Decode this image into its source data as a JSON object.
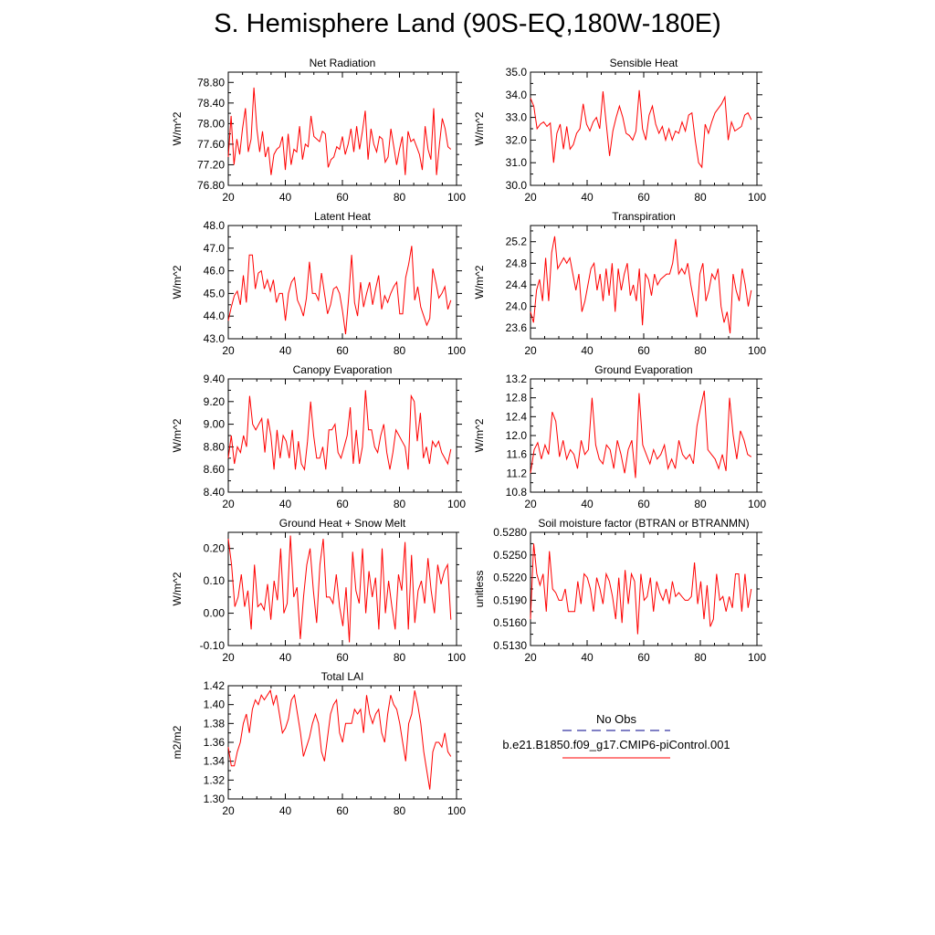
{
  "title": "S. Hemisphere Land (90S-EQ,180W-180E)",
  "colors": {
    "series": "#ff0000",
    "obs": "#00008b",
    "axis": "#000000"
  },
  "legend": {
    "obs_label": "No Obs",
    "model_label": "b.e21.B1850.f09_g17.CMIP6-piControl.001"
  },
  "chart_data": [
    {
      "type": "line",
      "title": "Net Radiation",
      "ylabel": "W/m^2",
      "xlim": [
        20,
        100
      ],
      "ylim": [
        76.8,
        79.0
      ],
      "xticks": [
        20,
        40,
        60,
        80,
        100
      ],
      "xtick_labels": [
        "20",
        "40",
        "60",
        "80",
        "100"
      ],
      "yticks": [
        76.8,
        77.2,
        77.6,
        78.0,
        78.4,
        78.8
      ],
      "ytick_labels": [
        "76.80",
        "77.20",
        "77.60",
        "78.00",
        "78.40",
        "78.80"
      ],
      "x_start": 20,
      "series": [
        {
          "name": "b.e21.B1850.f09_g17.CMIP6-piControl.001",
          "values": [
            77.35,
            78.15,
            77.2,
            77.7,
            77.4,
            77.9,
            78.3,
            77.45,
            77.7,
            78.7,
            77.9,
            77.45,
            77.85,
            77.35,
            77.55,
            77.0,
            77.4,
            77.5,
            77.55,
            77.75,
            77.1,
            77.8,
            77.2,
            77.5,
            77.45,
            77.95,
            77.3,
            77.6,
            77.55,
            78.15,
            77.75,
            77.7,
            77.65,
            77.85,
            77.8,
            77.15,
            77.3,
            77.35,
            77.55,
            77.5,
            77.75,
            77.4,
            77.6,
            77.9,
            77.45,
            77.95,
            77.5,
            77.85,
            78.25,
            77.3,
            77.9,
            77.6,
            77.45,
            77.75,
            77.7,
            77.25,
            77.35,
            77.9,
            77.55,
            77.2,
            77.5,
            77.75,
            77.0,
            77.85,
            77.65,
            77.7,
            77.55,
            77.4,
            77.1,
            77.95,
            77.5,
            77.3,
            78.3,
            77.0,
            77.6,
            78.1,
            77.9,
            77.55,
            77.5
          ]
        }
      ]
    },
    {
      "type": "line",
      "title": "Sensible Heat",
      "ylabel": "W/m^2",
      "xlim": [
        20,
        100
      ],
      "ylim": [
        30.0,
        35.0
      ],
      "xticks": [
        20,
        40,
        60,
        80,
        100
      ],
      "xtick_labels": [
        "20",
        "40",
        "60",
        "80",
        "100"
      ],
      "yticks": [
        30,
        31,
        32,
        33,
        34,
        35
      ],
      "ytick_labels": [
        "30.0",
        "31.0",
        "32.0",
        "33.0",
        "34.0",
        "35.0"
      ],
      "x_start": 20,
      "series": [
        {
          "name": "b.e21.B1850.f09_g17.CMIP6-piControl.001",
          "values": [
            33.85,
            33.5,
            32.5,
            32.7,
            32.8,
            32.6,
            32.75,
            31.0,
            32.3,
            32.7,
            31.6,
            32.6,
            31.6,
            31.8,
            32.3,
            32.5,
            33.6,
            32.7,
            32.4,
            32.8,
            33.0,
            32.5,
            34.15,
            32.7,
            31.3,
            32.4,
            33.0,
            33.5,
            33.0,
            32.3,
            32.2,
            32.0,
            32.4,
            34.2,
            32.5,
            32.0,
            33.1,
            33.5,
            32.7,
            32.3,
            32.6,
            32.0,
            32.5,
            32.0,
            32.4,
            32.3,
            32.8,
            32.4,
            33.1,
            33.2,
            32.0,
            31.0,
            30.8,
            32.7,
            32.3,
            32.8,
            33.2,
            33.4,
            33.6,
            33.9,
            32.0,
            32.8,
            32.4,
            32.5,
            32.6,
            33.1,
            33.2,
            32.9
          ]
        }
      ]
    },
    {
      "type": "line",
      "title": "Latent Heat",
      "ylabel": "W/m^2",
      "xlim": [
        20,
        100
      ],
      "ylim": [
        43.0,
        48.0
      ],
      "xticks": [
        20,
        40,
        60,
        80,
        100
      ],
      "xtick_labels": [
        "20",
        "40",
        "60",
        "80",
        "100"
      ],
      "yticks": [
        43,
        44,
        45,
        46,
        47,
        48
      ],
      "ytick_labels": [
        "43.0",
        "44.0",
        "45.0",
        "46.0",
        "47.0",
        "48.0"
      ],
      "x_start": 20,
      "series": [
        {
          "name": "b.e21.B1850.f09_g17.CMIP6-piControl.001",
          "values": [
            43.8,
            44.4,
            44.9,
            45.1,
            44.5,
            45.8,
            44.6,
            46.7,
            46.7,
            45.2,
            45.9,
            46.0,
            45.2,
            45.6,
            45.1,
            45.6,
            44.6,
            45.0,
            45.0,
            43.8,
            45.0,
            45.5,
            45.7,
            44.7,
            44.4,
            44.0,
            44.8,
            46.4,
            45.0,
            45.0,
            44.7,
            45.9,
            45.0,
            44.1,
            44.5,
            45.2,
            45.3,
            45.0,
            44.2,
            43.2,
            44.8,
            46.7,
            44.6,
            44.0,
            45.5,
            44.4,
            45.0,
            45.5,
            44.5,
            45.2,
            45.8,
            44.3,
            44.9,
            44.6,
            45.0,
            45.3,
            45.5,
            44.1,
            44.1,
            45.7,
            46.3,
            47.1,
            44.7,
            45.3,
            44.4,
            44.0,
            43.6,
            43.9,
            46.1,
            45.5,
            44.8,
            45.0,
            45.3,
            44.3,
            44.7
          ]
        }
      ]
    },
    {
      "type": "line",
      "title": "Transpiration",
      "ylabel": "W/m^2",
      "xlim": [
        20,
        100
      ],
      "ylim": [
        23.4,
        25.5
      ],
      "xticks": [
        20,
        40,
        60,
        80,
        100
      ],
      "xtick_labels": [
        "20",
        "40",
        "60",
        "80",
        "100"
      ],
      "yticks": [
        23.6,
        24.0,
        24.4,
        24.8,
        25.2
      ],
      "ytick_labels": [
        "23.6",
        "24.0",
        "24.4",
        "24.8",
        "25.2"
      ],
      "x_start": 20,
      "series": [
        {
          "name": "b.e21.B1850.f09_g17.CMIP6-piControl.001",
          "values": [
            23.9,
            23.7,
            24.3,
            24.5,
            24.1,
            24.9,
            24.1,
            25.0,
            25.3,
            24.7,
            24.8,
            24.9,
            24.8,
            24.9,
            24.6,
            24.3,
            24.6,
            23.9,
            24.1,
            24.4,
            24.7,
            24.8,
            24.3,
            24.6,
            24.1,
            24.7,
            24.2,
            24.8,
            23.9,
            24.7,
            24.3,
            24.6,
            24.8,
            24.2,
            24.4,
            24.1,
            24.7,
            23.65,
            24.6,
            24.5,
            24.2,
            24.6,
            24.4,
            24.5,
            24.55,
            24.6,
            24.6,
            24.8,
            25.25,
            24.6,
            24.7,
            24.6,
            24.8,
            24.4,
            24.1,
            23.8,
            24.6,
            24.8,
            24.1,
            24.3,
            24.6,
            24.5,
            24.7,
            24.0,
            23.7,
            23.9,
            23.5,
            24.6,
            24.3,
            24.1,
            24.7,
            24.4,
            24.0,
            24.3
          ]
        }
      ]
    },
    {
      "type": "line",
      "title": "Canopy Evaporation",
      "ylabel": "W/m^2",
      "xlim": [
        20,
        100
      ],
      "ylim": [
        8.4,
        9.4
      ],
      "xticks": [
        20,
        40,
        60,
        80,
        100
      ],
      "xtick_labels": [
        "20",
        "40",
        "60",
        "80",
        "100"
      ],
      "yticks": [
        8.4,
        8.6,
        8.8,
        9.0,
        9.2,
        9.4
      ],
      "ytick_labels": [
        "8.40",
        "8.60",
        "8.80",
        "9.00",
        "9.20",
        "9.40"
      ],
      "x_start": 20,
      "series": [
        {
          "name": "b.e21.B1850.f09_g17.CMIP6-piControl.001",
          "values": [
            8.7,
            8.9,
            8.65,
            8.8,
            8.75,
            8.9,
            8.8,
            9.25,
            9.0,
            8.95,
            9.0,
            9.05,
            8.75,
            9.05,
            8.9,
            8.6,
            8.95,
            8.7,
            8.9,
            8.85,
            8.7,
            8.95,
            8.6,
            8.85,
            8.65,
            8.6,
            8.85,
            9.2,
            8.9,
            8.7,
            8.7,
            8.8,
            8.6,
            8.95,
            8.95,
            9.0,
            8.75,
            8.7,
            8.8,
            8.9,
            9.15,
            8.65,
            8.95,
            8.65,
            8.8,
            9.3,
            8.95,
            8.95,
            8.8,
            8.75,
            8.9,
            9.0,
            8.75,
            8.6,
            8.75,
            8.95,
            8.9,
            8.85,
            8.8,
            8.6,
            9.25,
            9.2,
            8.85,
            9.1,
            8.7,
            8.8,
            8.65,
            8.85,
            8.8,
            8.85,
            8.75,
            8.7,
            8.65,
            8.78
          ]
        }
      ]
    },
    {
      "type": "line",
      "title": "Ground Evaporation",
      "ylabel": "W/m^2",
      "xlim": [
        20,
        100
      ],
      "ylim": [
        10.8,
        13.2
      ],
      "xticks": [
        20,
        40,
        60,
        80,
        100
      ],
      "xtick_labels": [
        "20",
        "40",
        "60",
        "80",
        "100"
      ],
      "yticks": [
        10.8,
        11.2,
        11.6,
        12.0,
        12.4,
        12.8,
        13.2
      ],
      "ytick_labels": [
        "10.8",
        "11.2",
        "11.6",
        "12.0",
        "12.4",
        "12.8",
        "13.2"
      ],
      "x_start": 20,
      "series": [
        {
          "name": "b.e21.B1850.f09_g17.CMIP6-piControl.001",
          "values": [
            11.2,
            11.7,
            11.85,
            11.5,
            11.8,
            11.6,
            12.5,
            12.3,
            11.55,
            11.9,
            11.5,
            11.7,
            11.6,
            11.3,
            11.9,
            11.6,
            11.7,
            12.8,
            11.8,
            11.5,
            11.4,
            11.8,
            11.7,
            11.3,
            11.9,
            11.6,
            11.2,
            11.7,
            11.9,
            11.1,
            12.9,
            11.8,
            11.6,
            11.4,
            11.7,
            11.5,
            11.6,
            11.8,
            11.3,
            11.5,
            11.3,
            11.9,
            11.6,
            11.5,
            11.6,
            11.4,
            12.2,
            12.6,
            12.95,
            11.7,
            11.6,
            11.5,
            11.3,
            11.6,
            11.25,
            12.8,
            12.0,
            11.5,
            12.1,
            11.9,
            11.6,
            11.55
          ]
        }
      ]
    },
    {
      "type": "line",
      "title": "Ground Heat + Snow Melt",
      "ylabel": "W/m^2",
      "xlim": [
        20,
        100
      ],
      "ylim": [
        -0.1,
        0.25
      ],
      "xticks": [
        20,
        40,
        60,
        80,
        100
      ],
      "xtick_labels": [
        "20",
        "40",
        "60",
        "80",
        "100"
      ],
      "yticks": [
        -0.1,
        0.0,
        0.1,
        0.2
      ],
      "ytick_labels": [
        "-0.10",
        "0.00",
        "0.10",
        "0.20"
      ],
      "x_start": 20,
      "series": [
        {
          "name": "b.e21.B1850.f09_g17.CMIP6-piControl.001",
          "values": [
            0.23,
            0.15,
            0.02,
            0.05,
            0.12,
            0.02,
            0.07,
            -0.05,
            0.15,
            0.02,
            0.03,
            0.01,
            0.09,
            -0.02,
            0.1,
            0.04,
            0.2,
            0.0,
            0.03,
            0.24,
            0.05,
            0.08,
            -0.08,
            0.05,
            0.15,
            0.2,
            0.07,
            -0.03,
            0.15,
            0.23,
            0.05,
            0.05,
            0.03,
            0.12,
            0.02,
            -0.04,
            0.08,
            -0.09,
            0.19,
            0.07,
            0.03,
            0.2,
            0.0,
            0.13,
            0.05,
            0.11,
            -0.05,
            0.2,
            0.0,
            0.1,
            0.02,
            -0.05,
            0.12,
            0.07,
            0.22,
            -0.05,
            0.18,
            -0.03,
            0.07,
            0.1,
            0.03,
            0.17,
            0.07,
            0.0,
            0.15,
            0.09,
            0.13,
            0.15,
            -0.02
          ]
        }
      ]
    },
    {
      "type": "line",
      "title": "Soil moisture factor (BTRAN or BTRANMN)",
      "ylabel": "unitless",
      "xlim": [
        20,
        100
      ],
      "ylim": [
        0.513,
        0.528
      ],
      "xticks": [
        20,
        40,
        60,
        80,
        100
      ],
      "xtick_labels": [
        "20",
        "40",
        "60",
        "80",
        "100"
      ],
      "yticks": [
        0.513,
        0.516,
        0.519,
        0.522,
        0.525,
        0.528
      ],
      "ytick_labels": [
        "0.5130",
        "0.5160",
        "0.5190",
        "0.5220",
        "0.5250",
        "0.5280"
      ],
      "x_start": 20,
      "series": [
        {
          "name": "b.e21.B1850.f09_g17.CMIP6-piControl.001",
          "values": [
            0.5165,
            0.5265,
            0.5225,
            0.521,
            0.5225,
            0.5175,
            0.5255,
            0.5205,
            0.52,
            0.519,
            0.519,
            0.5205,
            0.5175,
            0.5175,
            0.5175,
            0.5215,
            0.5185,
            0.5225,
            0.522,
            0.5205,
            0.5175,
            0.522,
            0.5205,
            0.5185,
            0.5225,
            0.5215,
            0.5195,
            0.5165,
            0.522,
            0.516,
            0.523,
            0.5185,
            0.5225,
            0.5215,
            0.5145,
            0.5225,
            0.519,
            0.5195,
            0.522,
            0.5175,
            0.5215,
            0.52,
            0.519,
            0.5205,
            0.5185,
            0.5215,
            0.5195,
            0.52,
            0.5195,
            0.519,
            0.519,
            0.5195,
            0.524,
            0.5185,
            0.5215,
            0.5165,
            0.521,
            0.5155,
            0.5165,
            0.5225,
            0.519,
            0.5195,
            0.5175,
            0.5195,
            0.518,
            0.5225,
            0.5225,
            0.5175,
            0.5225,
            0.518,
            0.5205
          ]
        }
      ]
    },
    {
      "type": "line",
      "title": "Total LAI",
      "ylabel": "m2/m2",
      "xlim": [
        20,
        100
      ],
      "ylim": [
        1.3,
        1.42
      ],
      "xticks": [
        20,
        40,
        60,
        80,
        100
      ],
      "xtick_labels": [
        "20",
        "40",
        "60",
        "80",
        "100"
      ],
      "yticks": [
        1.3,
        1.32,
        1.34,
        1.36,
        1.38,
        1.4,
        1.42
      ],
      "ytick_labels": [
        "1.30",
        "1.32",
        "1.34",
        "1.36",
        "1.38",
        "1.40",
        "1.42"
      ],
      "x_start": 20,
      "series": [
        {
          "name": "b.e21.B1850.f09_g17.CMIP6-piControl.001",
          "values": [
            1.355,
            1.335,
            1.335,
            1.35,
            1.36,
            1.38,
            1.39,
            1.37,
            1.395,
            1.405,
            1.4,
            1.41,
            1.405,
            1.41,
            1.415,
            1.4,
            1.41,
            1.39,
            1.37,
            1.375,
            1.385,
            1.405,
            1.41,
            1.39,
            1.37,
            1.345,
            1.355,
            1.365,
            1.38,
            1.39,
            1.38,
            1.35,
            1.34,
            1.365,
            1.39,
            1.4,
            1.405,
            1.37,
            1.36,
            1.38,
            1.38,
            1.38,
            1.395,
            1.39,
            1.395,
            1.37,
            1.41,
            1.39,
            1.38,
            1.39,
            1.395,
            1.37,
            1.36,
            1.39,
            1.41,
            1.4,
            1.395,
            1.38,
            1.36,
            1.34,
            1.38,
            1.39,
            1.415,
            1.4,
            1.38,
            1.35,
            1.33,
            1.31,
            1.35,
            1.36,
            1.36,
            1.355,
            1.37,
            1.35,
            1.345
          ]
        }
      ]
    }
  ]
}
